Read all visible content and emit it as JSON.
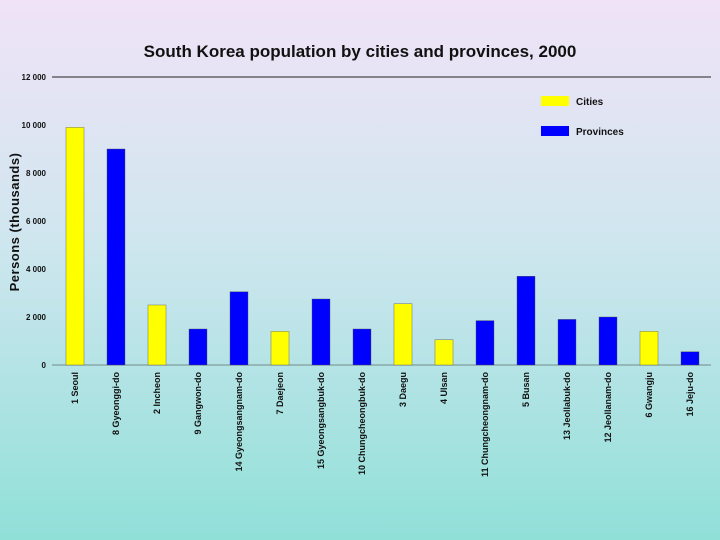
{
  "chart_data": {
    "type": "bar",
    "title": "South Korea population by cities and provinces, 2000",
    "ylabel": "Persons (thousands)",
    "ylim": [
      0,
      12000
    ],
    "y_ticks": [
      "0",
      "2 000",
      "4 000",
      "6 000",
      "8 000",
      "10 000",
      "12 000"
    ],
    "y_tick_values": [
      0,
      2000,
      4000,
      6000,
      8000,
      10000,
      12000
    ],
    "categories": [
      "1 Seoul",
      "8 Gyeonggi-do",
      "2 Incheon",
      "9 Gangwon-do",
      "14 Gyeongsangnam-do",
      "7 Daejeon",
      "15 Gyeongsangbuk-do",
      "10 Chungcheongbuk-do",
      "3 Daegu",
      "4 Ulsan",
      "11 Chungcheongnam-do",
      "5 Busan",
      "13 Jeollabuk-do",
      "12 Jeollanam-do",
      "6 Gwangju",
      "16 Jeju-do"
    ],
    "values": [
      9900,
      9000,
      2500,
      1500,
      3050,
      1400,
      2750,
      1500,
      2550,
      1050,
      1850,
      3700,
      1900,
      2000,
      1400,
      550
    ],
    "kinds": [
      "Cities",
      "Provinces",
      "Cities",
      "Provinces",
      "Provinces",
      "Cities",
      "Provinces",
      "Provinces",
      "Cities",
      "Cities",
      "Provinces",
      "Provinces",
      "Provinces",
      "Provinces",
      "Cities",
      "Provinces"
    ],
    "legend": [
      {
        "name": "Cities",
        "color": "#ffff00"
      },
      {
        "name": "Provinces",
        "color": "#0000ff"
      }
    ],
    "legend_position": "top-right",
    "grid": false
  }
}
